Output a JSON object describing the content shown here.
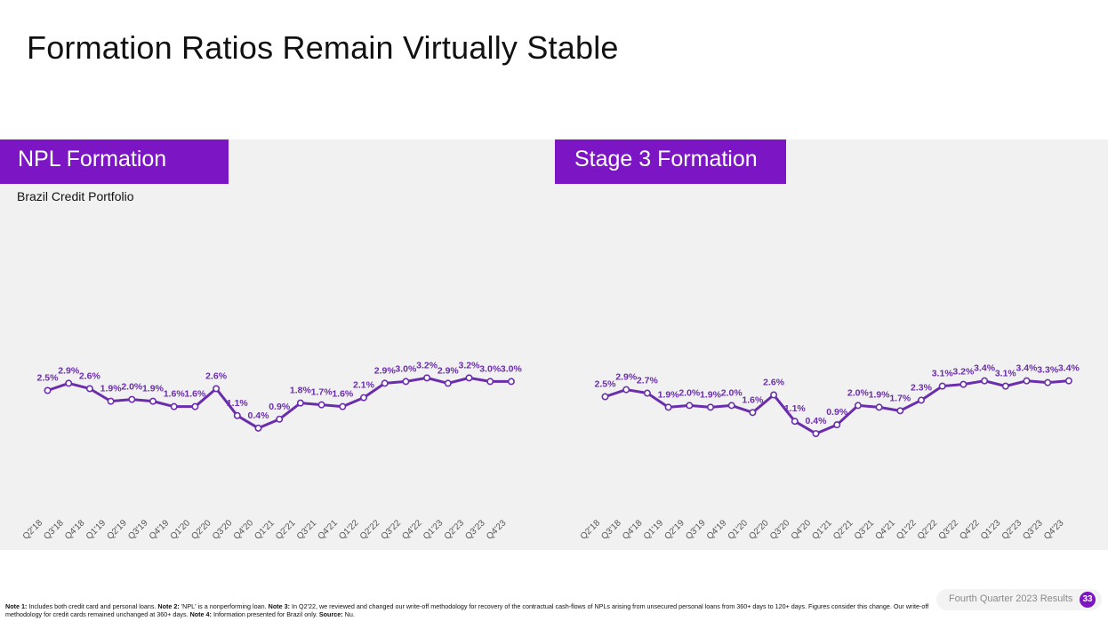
{
  "title": "Formation Ratios Remain Virtually Stable",
  "colors": {
    "accent": "#7c16c4",
    "line": "#6a2dac",
    "label": "#6a2dac",
    "panel_bg": "#f1f1f1"
  },
  "chart_data": [
    {
      "type": "line",
      "title": "NPL Formation",
      "subtitle": "Brazil Credit Portfolio",
      "categories": [
        "Q2'18",
        "Q3'18",
        "Q4'18",
        "Q1'19",
        "Q2'19",
        "Q3'19",
        "Q4'19",
        "Q1'20",
        "Q2'20",
        "Q3'20",
        "Q4'20",
        "Q1'21",
        "Q2'21",
        "Q3'21",
        "Q4'21",
        "Q1'22",
        "Q2'22",
        "Q3'22",
        "Q4'22",
        "Q1'23",
        "Q2'23",
        "Q3'23",
        "Q4'23"
      ],
      "values": [
        2.5,
        2.9,
        2.6,
        1.9,
        2.0,
        1.9,
        1.6,
        1.6,
        2.6,
        1.1,
        0.4,
        0.9,
        1.8,
        1.7,
        1.6,
        2.1,
        2.9,
        3.0,
        3.2,
        2.9,
        3.2,
        3.0,
        3.0
      ],
      "labels": [
        "2.5%",
        "2.9%",
        "2.6%",
        "1.9%",
        "2.0%",
        "1.9%",
        "1.6%",
        "1.6%",
        "2.6%",
        "1.1%",
        "0.4%",
        "0.9%",
        "1.8%",
        "1.7%",
        "1.6%",
        "2.1%",
        "2.9%",
        "3.0%",
        "3.2%",
        "2.9%",
        "3.2%",
        "3.0%",
        "3.0%"
      ],
      "unit": "%",
      "xlabel": "",
      "ylabel": "",
      "ylim": [
        -3,
        6
      ],
      "grid": false
    },
    {
      "type": "line",
      "title": "Stage 3 Formation",
      "categories": [
        "Q2'18",
        "Q3'18",
        "Q4'18",
        "Q1'19",
        "Q2'19",
        "Q3'19",
        "Q4'19",
        "Q1'20",
        "Q2'20",
        "Q3'20",
        "Q4'20",
        "Q1'21",
        "Q2'21",
        "Q3'21",
        "Q4'21",
        "Q1'22",
        "Q2'22",
        "Q3'22",
        "Q4'22",
        "Q1'23",
        "Q2'23",
        "Q3'23",
        "Q4'23"
      ],
      "values": [
        2.5,
        2.9,
        2.7,
        1.9,
        2.0,
        1.9,
        2.0,
        1.6,
        2.6,
        1.1,
        0.4,
        0.9,
        2.0,
        1.9,
        1.7,
        2.3,
        3.1,
        3.2,
        3.4,
        3.1,
        3.4,
        3.3,
        3.4
      ],
      "labels": [
        "2.5%",
        "2.9%",
        "2.7%",
        "1.9%",
        "2.0%",
        "1.9%",
        "2.0%",
        "1.6%",
        "2.6%",
        "1.1%",
        "0.4%",
        "0.9%",
        "2.0%",
        "1.9%",
        "1.7%",
        "2.3%",
        "3.1%",
        "3.2%",
        "3.4%",
        "3.1%",
        "3.4%",
        "3.3%",
        "3.4%"
      ],
      "unit": "%",
      "xlabel": "",
      "ylabel": "",
      "ylim": [
        -3,
        6
      ],
      "grid": false
    }
  ],
  "footnote": {
    "n1_label": "Note 1:",
    "n1_text": " Includes both credit card and personal loans.  ",
    "n2_label": "Note 2:",
    "n2_text": " 'NPL' is a nonperforming loan. ",
    "n3_label": "Note 3:",
    "n3_text": " In Q2'22, we reviewed and changed our write-off methodology for recovery of the contractual cash-flows of NPLs arising from unsecured personal loans from 360+ days to 120+ days. Figures consider this change. Our write-off methodology for credit cards remained unchanged at 360+ days. ",
    "n4_label": "Note 4:",
    "n4_text": " Information presented for Brazil only. ",
    "source_label": "Source:",
    "source_text": " Nu."
  },
  "footer": {
    "label": "Fourth Quarter 2023 Results",
    "page": "33"
  }
}
